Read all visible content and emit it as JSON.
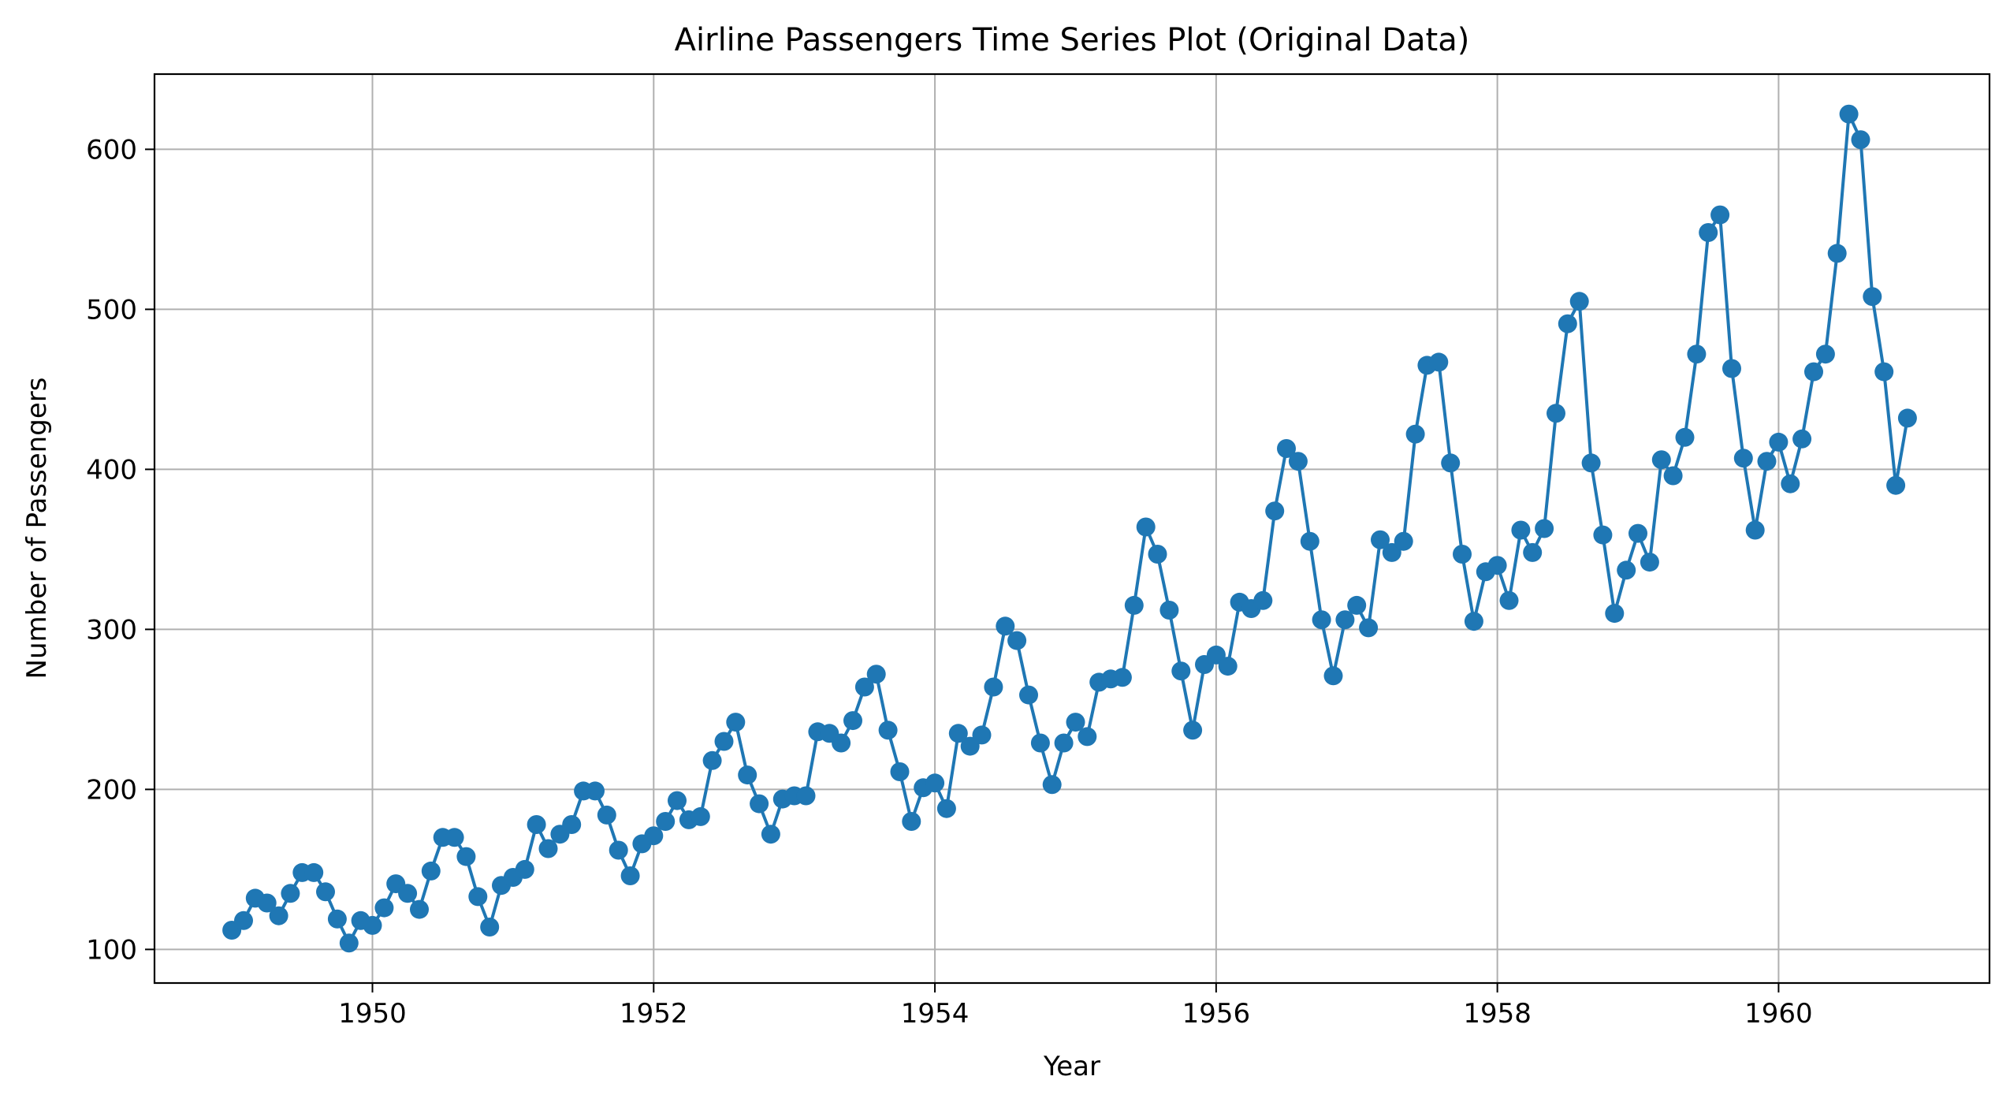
{
  "chart_data": {
    "type": "line",
    "title": "Airline Passengers Time Series Plot (Original Data)",
    "xlabel": "Year",
    "ylabel": "Number of Passengers",
    "xlim": [
      1948.45,
      1961.5
    ],
    "ylim": [
      79,
      647
    ],
    "x_ticks": [
      1950,
      1952,
      1954,
      1956,
      1958,
      1960
    ],
    "y_ticks": [
      100,
      200,
      300,
      400,
      500,
      600
    ],
    "grid": true,
    "legend": "none",
    "marker": "circle",
    "series": [
      {
        "color": "#1f77b4",
        "start_year": 1949,
        "points_per_year": 12,
        "values": [
          112,
          118,
          132,
          129,
          121,
          135,
          148,
          148,
          136,
          119,
          104,
          118,
          115,
          126,
          141,
          135,
          125,
          149,
          170,
          170,
          158,
          133,
          114,
          140,
          145,
          150,
          178,
          163,
          172,
          178,
          199,
          199,
          184,
          162,
          146,
          166,
          171,
          180,
          193,
          181,
          183,
          218,
          230,
          242,
          209,
          191,
          172,
          194,
          196,
          196,
          236,
          235,
          229,
          243,
          264,
          272,
          237,
          211,
          180,
          201,
          204,
          188,
          235,
          227,
          234,
          264,
          302,
          293,
          259,
          229,
          203,
          229,
          242,
          233,
          267,
          269,
          270,
          315,
          364,
          347,
          312,
          274,
          237,
          278,
          284,
          277,
          317,
          313,
          318,
          374,
          413,
          405,
          355,
          306,
          271,
          306,
          315,
          301,
          356,
          348,
          355,
          422,
          465,
          467,
          404,
          347,
          305,
          336,
          340,
          318,
          362,
          348,
          363,
          435,
          491,
          505,
          404,
          359,
          310,
          337,
          360,
          342,
          406,
          396,
          420,
          472,
          548,
          559,
          463,
          407,
          362,
          405,
          417,
          391,
          419,
          461,
          472,
          535,
          622,
          606,
          508,
          461,
          390,
          432
        ]
      }
    ]
  }
}
